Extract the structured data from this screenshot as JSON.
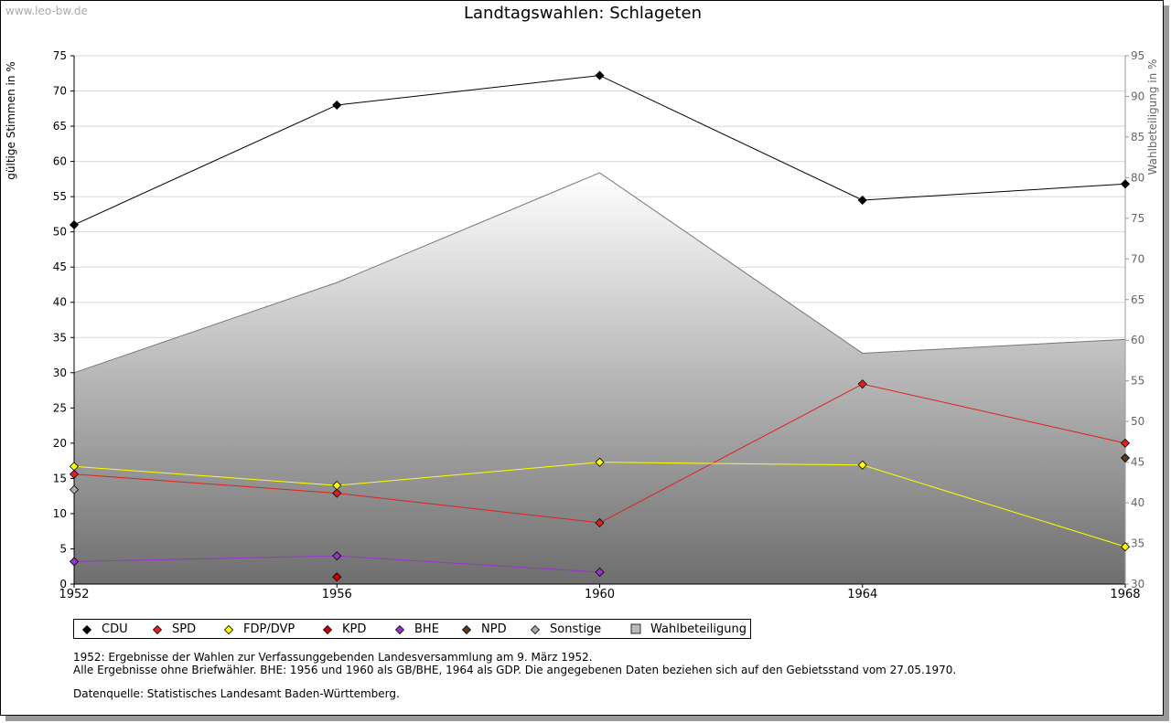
{
  "watermark": "www.leo-bw.de",
  "chart_data": {
    "type": "line",
    "title": "Landtagswahlen: Schlageten",
    "ylabel_left": "gültige Stimmen in %",
    "ylabel_right": "Wahlbeteiligung in %",
    "x": [
      1952,
      1956,
      1960,
      1964,
      1968
    ],
    "ylim_left": [
      0,
      75
    ],
    "yticks_left": [
      0,
      5,
      10,
      15,
      20,
      25,
      30,
      35,
      40,
      45,
      50,
      55,
      60,
      65,
      70,
      75
    ],
    "ylim_right": [
      30,
      95
    ],
    "yticks_right": [
      30,
      35,
      40,
      45,
      50,
      55,
      60,
      65,
      70,
      75,
      80,
      85,
      90,
      95
    ],
    "grid": true,
    "series": [
      {
        "name": "CDU",
        "color": "#000000",
        "values": [
          51.0,
          68.0,
          72.2,
          54.5,
          56.8
        ]
      },
      {
        "name": "SPD",
        "color": "#e02020",
        "values": [
          15.6,
          12.9,
          8.7,
          28.4,
          20.0
        ]
      },
      {
        "name": "FDP/DVP",
        "color": "#ffff00",
        "values": [
          16.7,
          14.0,
          17.3,
          16.9,
          5.3
        ]
      },
      {
        "name": "KPD",
        "color": "#cc0000",
        "values": [
          null,
          1.0,
          null,
          null,
          null
        ]
      },
      {
        "name": "BHE",
        "color": "#9933cc",
        "values": [
          3.2,
          4.0,
          1.7,
          null,
          null
        ]
      },
      {
        "name": "NPD",
        "color": "#5a3a1a",
        "values": [
          null,
          null,
          null,
          null,
          17.9
        ]
      },
      {
        "name": "Sonstige",
        "color": "#aaaaaa",
        "values": [
          13.4,
          null,
          null,
          null,
          null
        ]
      }
    ],
    "area": {
      "name": "Wahlbeteiligung",
      "axis": "right",
      "values": [
        56.0,
        67.1,
        80.6,
        58.4,
        60.1
      ]
    }
  },
  "legend": {
    "items": [
      "CDU",
      "SPD",
      "FDP/DVP",
      "KPD",
      "BHE",
      "NPD",
      "Sonstige",
      "Wahlbeteiligung"
    ]
  },
  "notes": {
    "line1": "1952: Ergebnisse der Wahlen zur Verfassunggebenden Landesversammlung am 9. März 1952.",
    "line2": "Alle Ergebnisse ohne Briefwähler. BHE: 1956 und 1960 als GB/BHE, 1964 als GDP. Die angegebenen Daten beziehen sich auf den Gebietsstand vom 27.05.1970.",
    "line3": "Datenquelle: Statistisches Landesamt Baden-Württemberg."
  }
}
